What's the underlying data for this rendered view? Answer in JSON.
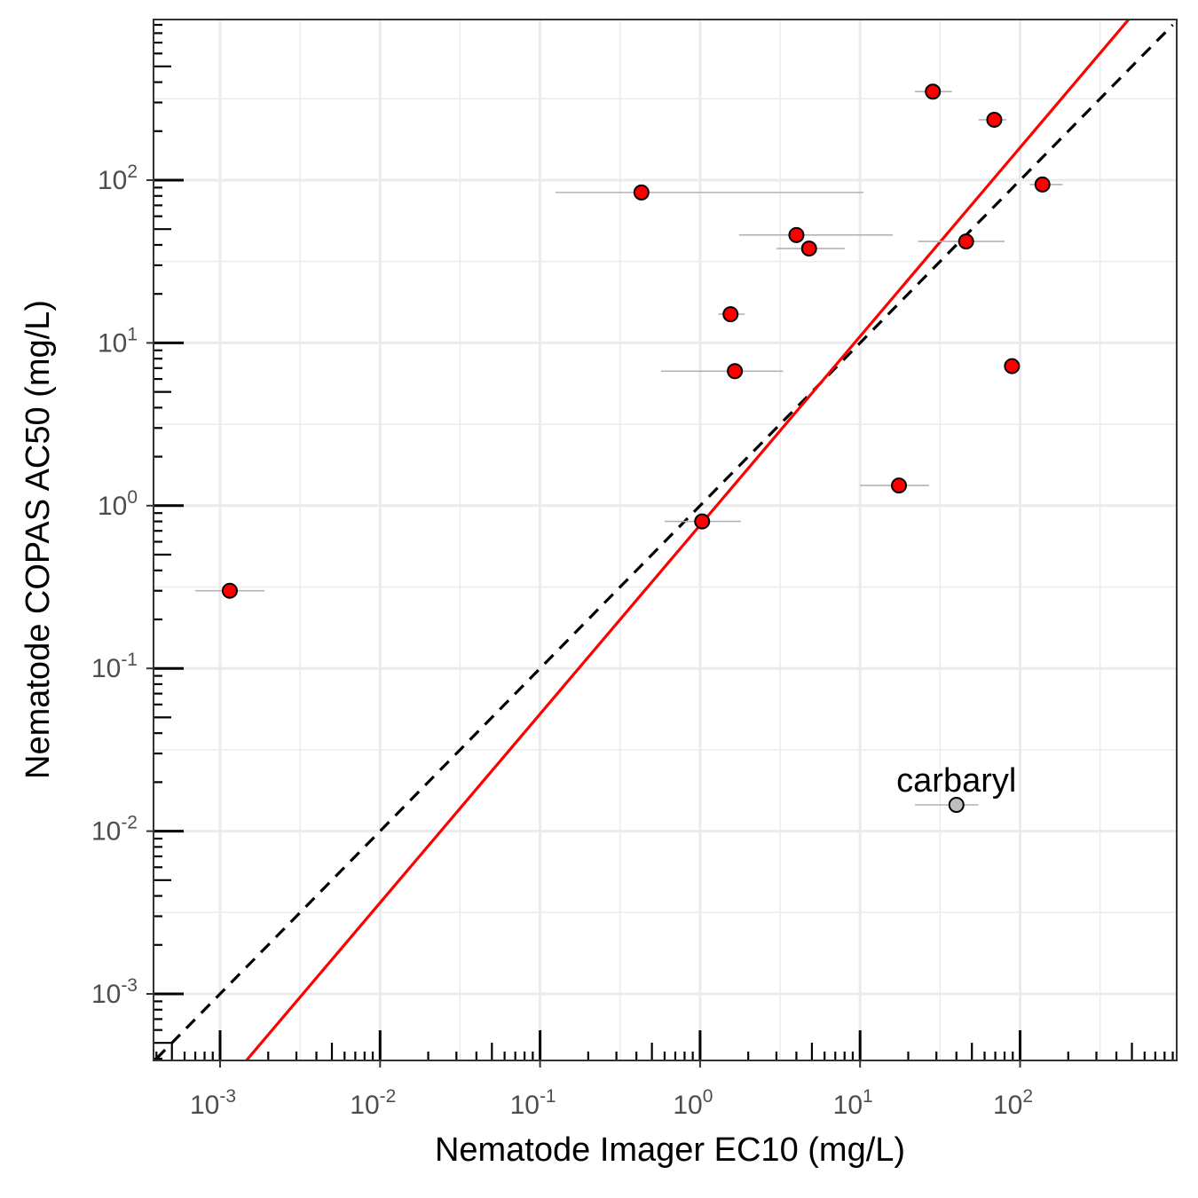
{
  "chart_data": {
    "type": "scatter",
    "xlabel": "Nematode Imager EC10 (mg/L)",
    "ylabel": "Nematode COPAS AC50 (mg/L)",
    "x_scale": "log10",
    "y_scale": "log10",
    "xlim": [
      0.0004,
      900
    ],
    "ylim": [
      0.0004,
      900
    ],
    "x_ticks": [
      {
        "base": "10",
        "exp": "-3",
        "value": 0.001
      },
      {
        "base": "10",
        "exp": "-2",
        "value": 0.01
      },
      {
        "base": "10",
        "exp": "-1",
        "value": 0.1
      },
      {
        "base": "10",
        "exp": "0",
        "value": 1
      },
      {
        "base": "10",
        "exp": "1",
        "value": 10
      },
      {
        "base": "10",
        "exp": "2",
        "value": 100
      }
    ],
    "y_ticks": [
      {
        "base": "10",
        "exp": "-3",
        "value": 0.001
      },
      {
        "base": "10",
        "exp": "-2",
        "value": 0.01
      },
      {
        "base": "10",
        "exp": "-1",
        "value": 0.1
      },
      {
        "base": "10",
        "exp": "0",
        "value": 1
      },
      {
        "base": "10",
        "exp": "1",
        "value": 10
      },
      {
        "base": "10",
        "exp": "2",
        "value": 100
      }
    ],
    "grid": true,
    "log_tick_marks": true,
    "points": [
      {
        "x": 0.00115,
        "y": 0.3,
        "xmin": 0.0007,
        "xmax": 0.0019,
        "color": "#ff0000"
      },
      {
        "x": 0.43,
        "y": 84,
        "xmin": 0.125,
        "xmax": 10.5,
        "color": "#ff0000"
      },
      {
        "x": 1.03,
        "y": 0.8,
        "xmin": 0.6,
        "xmax": 1.8,
        "color": "#ff0000"
      },
      {
        "x": 1.55,
        "y": 15,
        "xmin": 1.3,
        "xmax": 1.9,
        "color": "#ff0000"
      },
      {
        "x": 1.65,
        "y": 6.7,
        "xmin": 0.57,
        "xmax": 3.3,
        "color": "#ff0000"
      },
      {
        "x": 4.0,
        "y": 46,
        "xmin": 1.75,
        "xmax": 16.0,
        "color": "#ff0000"
      },
      {
        "x": 4.8,
        "y": 38,
        "xmin": 3.0,
        "xmax": 8.0,
        "color": "#ff0000"
      },
      {
        "x": 17.5,
        "y": 1.33,
        "xmin": 10.0,
        "xmax": 27.0,
        "color": "#ff0000"
      },
      {
        "x": 28.5,
        "y": 350,
        "xmin": 22.0,
        "xmax": 37.5,
        "color": "#ff0000"
      },
      {
        "x": 46.0,
        "y": 42,
        "xmin": 23.0,
        "xmax": 80.0,
        "color": "#ff0000"
      },
      {
        "x": 69.0,
        "y": 235,
        "xmin": 55.0,
        "xmax": 82.0,
        "color": "#ff0000"
      },
      {
        "x": 89.0,
        "y": 7.2,
        "xmin": 80.0,
        "xmax": 97.0,
        "color": "#ff0000"
      },
      {
        "x": 138.0,
        "y": 94,
        "xmin": 115.0,
        "xmax": 185.0,
        "color": "#ff0000"
      },
      {
        "x": 40.0,
        "y": 0.0145,
        "xmin": 22.0,
        "xmax": 55.0,
        "color": "#bebebe"
      }
    ],
    "lines": [
      {
        "style": "dashed",
        "color": "#000000",
        "intercept_log10": 0,
        "slope": 1
      },
      {
        "style": "solid",
        "color": "#ff0000",
        "intercept_log10": -0.12,
        "slope": 1.16
      }
    ],
    "annotations": [
      {
        "text": "carbaryl",
        "x": 40.0,
        "y": 0.0175
      }
    ]
  }
}
